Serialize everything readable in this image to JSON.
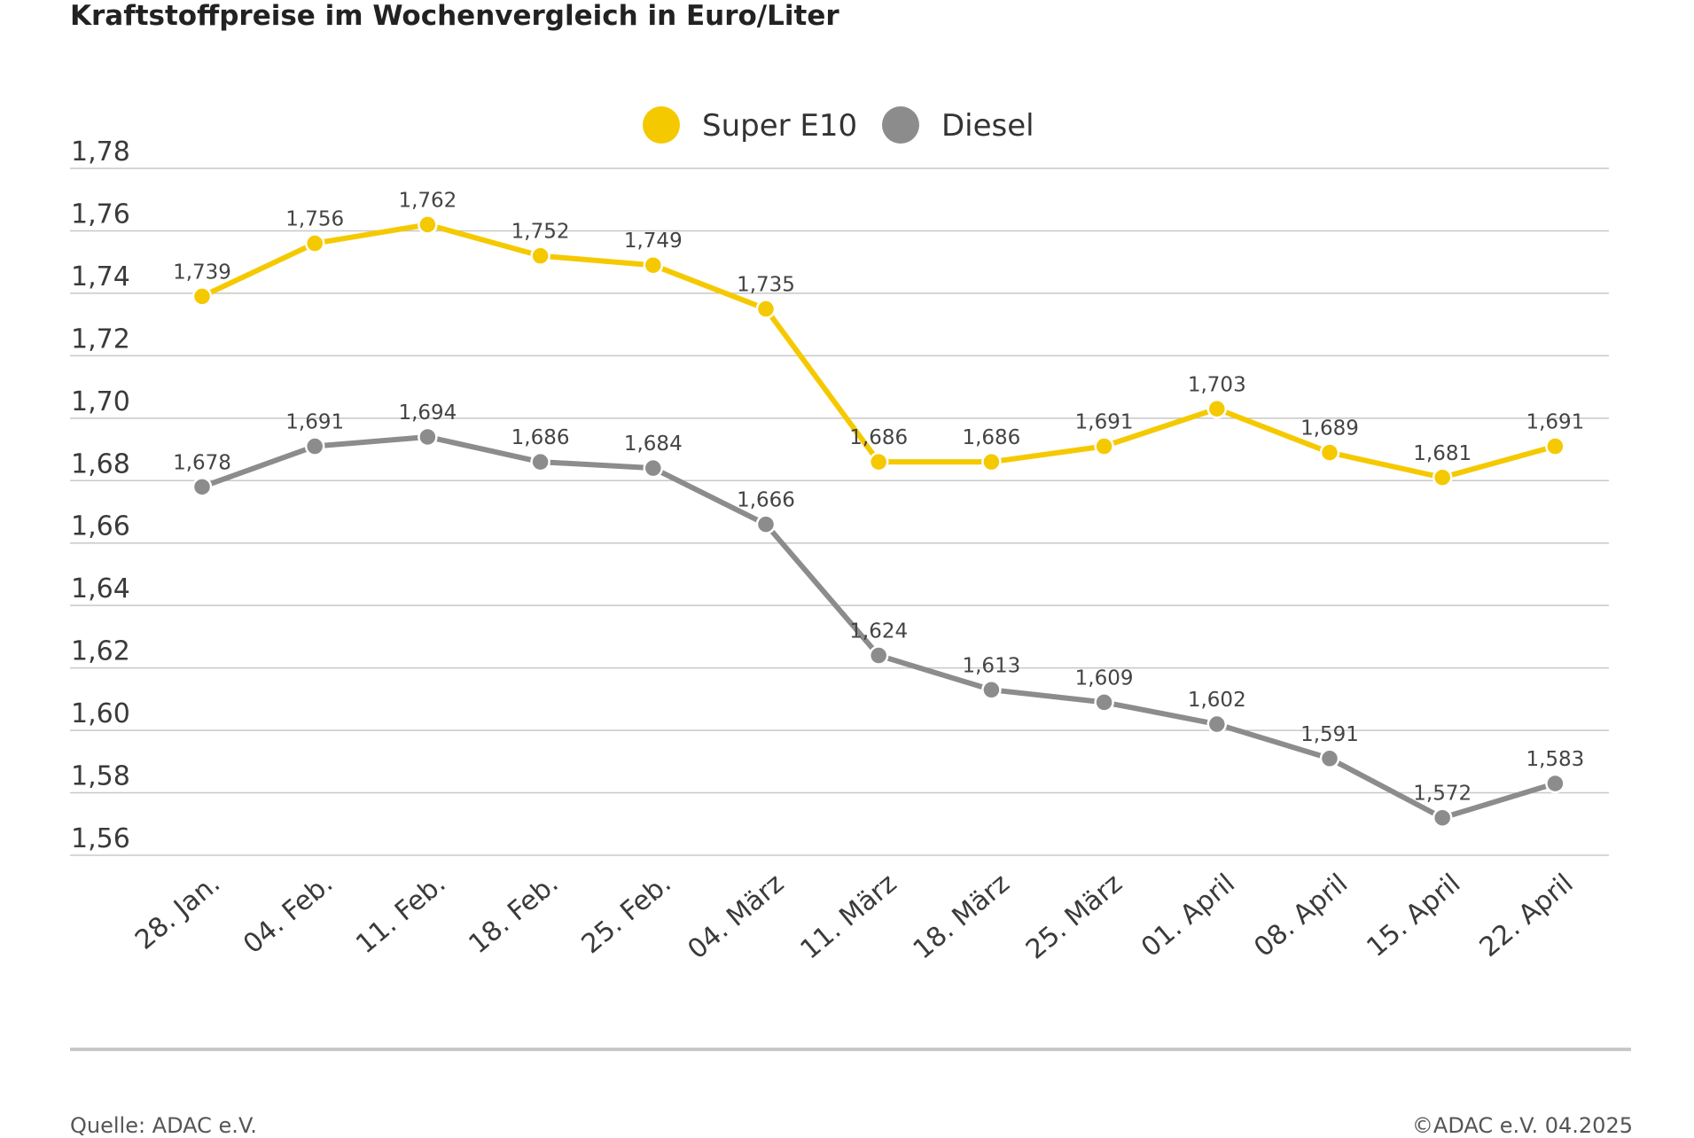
{
  "chart_data": {
    "type": "line",
    "title": "Kraftstoffpreise im Wochenvergleich in Euro/Liter",
    "xlabel": "",
    "ylabel": "",
    "categories": [
      "28. Jan.",
      "04. Feb.",
      "11. Feb.",
      "18. Feb.",
      "25. Feb.",
      "04. März",
      "11. März",
      "18. März",
      "25. März",
      "01. April",
      "08. April",
      "15. April",
      "22. April"
    ],
    "series": [
      {
        "name": "Super E10",
        "color": "#F5C900",
        "values": [
          1.739,
          1.756,
          1.762,
          1.752,
          1.749,
          1.735,
          1.686,
          1.686,
          1.691,
          1.703,
          1.689,
          1.681,
          1.691
        ],
        "labels": [
          "1,739",
          "1,756",
          "1,762",
          "1,752",
          "1,749",
          "1,735",
          "1,686",
          "1,686",
          "1,691",
          "1,703",
          "1,689",
          "1,681",
          "1,691"
        ]
      },
      {
        "name": "Diesel",
        "color": "#8C8C8C",
        "values": [
          1.678,
          1.691,
          1.694,
          1.686,
          1.684,
          1.666,
          1.624,
          1.613,
          1.609,
          1.602,
          1.591,
          1.572,
          1.583
        ],
        "labels": [
          "1,678",
          "1,691",
          "1,694",
          "1,686",
          "1,684",
          "1,666",
          "1,624",
          "1,613",
          "1,609",
          "1,602",
          "1,591",
          "1,572",
          "1,583"
        ]
      }
    ],
    "ylim": [
      1.56,
      1.78
    ],
    "yticks": [
      1.78,
      1.76,
      1.74,
      1.72,
      1.7,
      1.68,
      1.66,
      1.64,
      1.62,
      1.6,
      1.58,
      1.56
    ],
    "ytick_labels": [
      "1,78",
      "1,76",
      "1,74",
      "1,72",
      "1,70",
      "1,68",
      "1,66",
      "1,64",
      "1,62",
      "1,60",
      "1,58",
      "1,56"
    ],
    "grid": true,
    "legend_position": "top-center"
  },
  "footer": {
    "source": "Quelle: ADAC e.V.",
    "copyright": "©ADAC e.V. 04.2025"
  }
}
